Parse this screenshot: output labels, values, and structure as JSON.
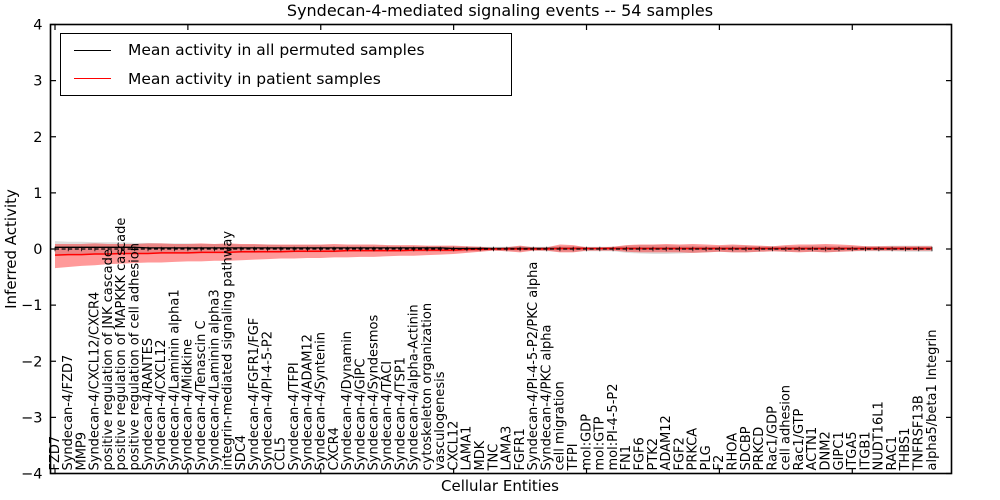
{
  "title": "Syndecan-4-mediated signaling events -- 54 samples",
  "legend": {
    "entries": [
      {
        "label": "Mean activity in all permuted samples",
        "color": "#000000"
      },
      {
        "label": "Mean activity in patient samples",
        "color": "#ff0000"
      }
    ]
  },
  "colors": {
    "background": "#ffffff",
    "frame": "#000000",
    "permuted_line": "#000000",
    "patient_line": "#ff0000",
    "permuted_band": "rgba(0,0,0,0.13)",
    "patient_band": "rgba(255,0,0,0.40)",
    "zero_line": "#000000"
  },
  "chart_data": {
    "type": "line",
    "title": "Syndecan-4-mediated signaling events -- 54 samples",
    "xlabel": "Cellular Entities",
    "ylabel": "Inferred Activity",
    "ylim": [
      -4,
      4
    ],
    "yticks": [
      -4,
      -3,
      -2,
      -1,
      0,
      1,
      2,
      3,
      4
    ],
    "xticks": [
      0,
      10,
      20,
      30,
      40,
      50,
      60
    ],
    "grid": false,
    "legend_position": "upper left",
    "zero_line": {
      "style": "dashed",
      "color": "#000000"
    },
    "categories": [
      "FZD7",
      "Syndecan-4/FZD7",
      "MMP9",
      "Syndecan-4/CXCL12/CXCR4",
      "positive regulation of JNK cascade",
      "positive regulation of MAPKKK cascade",
      "positive regulation of cell adhesion",
      "Syndecan-4/RANTES",
      "Syndecan-4/CXCL12",
      "Syndecan-4/Laminin alpha1",
      "Syndecan-4/Midkine",
      "Syndecan-4/Tenascin C",
      "Syndecan-4/Laminin alpha3",
      "integrin-mediated signaling pathway",
      "SDC4",
      "Syndecan-4/FGFR1/FGF",
      "Syndecan-4/PI-4-5-P2",
      "CCL5",
      "Syndecan-4/TFPI",
      "Syndecan-4/ADAM12",
      "Syndecan-4/Syntenin",
      "CXCR4",
      "Syndecan-4/Dynamin",
      "Syndecan-4/GIPC",
      "Syndecan-4/Syndesmos",
      "Syndecan-4/TACI",
      "Syndecan-4/TSP1",
      "Syndecan-4/alpha-Actinin",
      "cytoskeleton organization",
      "vasculogenesis",
      "CXCL12",
      "LAMA1",
      "MDK",
      "TNC",
      "LAMA3",
      "FGFR1",
      "Syndecan-4/PI-4-5-P2/PKC alpha",
      "Syndecan-4/PKC alpha",
      "cell migration",
      "TFPI",
      "mol:GDP",
      "mol:GTP",
      "mol:PI-4-5-P2",
      "FN1",
      "FGF6",
      "PTK2",
      "ADAM12",
      "FGF2",
      "PRKCA",
      "PLG",
      "F2",
      "RHOA",
      "SDCBP",
      "PRKCD",
      "Rac1/GDP",
      "cell adhesion",
      "Rac1/GTP",
      "ACTN1",
      "DNM2",
      "GIPC1",
      "ITGA5",
      "ITGB1",
      "NUDT16L1",
      "RAC1",
      "THBS1",
      "TNFRSF13B",
      "alpha5/beta1 Integrin"
    ],
    "series": [
      {
        "name": "Mean activity in all permuted samples",
        "color": "#000000",
        "band_color": "rgba(0,0,0,0.13)",
        "values": [
          0.03,
          0.03,
          0.03,
          0.03,
          0.03,
          0.03,
          0.03,
          0.02,
          0.02,
          0.02,
          0.02,
          0.02,
          0.02,
          0.02,
          0.02,
          0.02,
          0.02,
          0.02,
          0.02,
          0.02,
          0.02,
          0.02,
          0.02,
          0.02,
          0.02,
          0.02,
          0.02,
          0.02,
          0.02,
          0.02,
          0.01,
          0.01,
          0.01,
          0.01,
          0.01,
          0.01,
          0.01,
          0.01,
          0.01,
          0.01,
          0.01,
          0.01,
          0.01,
          0.01,
          0.01,
          0.01,
          0.01,
          0.01,
          0.01,
          0.01,
          0.01,
          0.01,
          0.01,
          0.01,
          0.01,
          0.01,
          0.01,
          0.01,
          0.01,
          0.01,
          0.01,
          0.01,
          0.01,
          0.01,
          0.01,
          0.01,
          0.01
        ],
        "band_upper": [
          0.14,
          0.13,
          0.13,
          0.12,
          0.12,
          0.12,
          0.11,
          0.11,
          0.1,
          0.1,
          0.1,
          0.09,
          0.09,
          0.09,
          0.08,
          0.08,
          0.08,
          0.07,
          0.07,
          0.07,
          0.07,
          0.06,
          0.06,
          0.06,
          0.06,
          0.06,
          0.05,
          0.05,
          0.05,
          0.05,
          0.05,
          0.04,
          0.04,
          0.04,
          0.04,
          0.05,
          0.04,
          0.04,
          0.05,
          0.05,
          0.04,
          0.04,
          0.04,
          0.06,
          0.07,
          0.07,
          0.07,
          0.06,
          0.06,
          0.05,
          0.05,
          0.06,
          0.06,
          0.05,
          0.05,
          0.05,
          0.05,
          0.06,
          0.06,
          0.05,
          0.05,
          0.05,
          0.05,
          0.06,
          0.06,
          0.06,
          0.06
        ],
        "band_lower": [
          -0.1,
          -0.1,
          -0.1,
          -0.09,
          -0.09,
          -0.09,
          -0.09,
          -0.08,
          -0.08,
          -0.08,
          -0.08,
          -0.07,
          -0.07,
          -0.07,
          -0.07,
          -0.07,
          -0.06,
          -0.06,
          -0.06,
          -0.06,
          -0.06,
          -0.06,
          -0.05,
          -0.05,
          -0.05,
          -0.05,
          -0.05,
          -0.05,
          -0.05,
          -0.05,
          -0.05,
          -0.04,
          -0.04,
          -0.03,
          -0.04,
          -0.04,
          -0.03,
          -0.04,
          -0.05,
          -0.05,
          -0.04,
          -0.04,
          -0.04,
          -0.07,
          -0.08,
          -0.09,
          -0.09,
          -0.08,
          -0.07,
          -0.06,
          -0.05,
          -0.06,
          -0.06,
          -0.05,
          -0.04,
          -0.05,
          -0.05,
          -0.05,
          -0.06,
          -0.05,
          -0.04,
          -0.04,
          -0.04,
          -0.04,
          -0.05,
          -0.05,
          -0.05
        ]
      },
      {
        "name": "Mean activity in patient samples",
        "color": "#ff0000",
        "band_color": "rgba(255,0,0,0.40)",
        "values": [
          -0.11,
          -0.1,
          -0.1,
          -0.09,
          -0.09,
          -0.08,
          -0.08,
          -0.08,
          -0.07,
          -0.07,
          -0.07,
          -0.06,
          -0.06,
          -0.06,
          -0.05,
          -0.05,
          -0.05,
          -0.05,
          -0.04,
          -0.04,
          -0.04,
          -0.04,
          -0.03,
          -0.03,
          -0.03,
          -0.03,
          -0.03,
          -0.02,
          -0.02,
          -0.02,
          -0.02,
          -0.01,
          -0.01,
          0.0,
          0.0,
          0.0,
          0.0,
          0.0,
          0.01,
          0.01,
          0.01,
          0.01,
          0.01,
          0.01,
          0.01,
          0.01,
          0.01,
          0.01,
          0.01,
          0.01,
          0.01,
          0.01,
          0.01,
          0.01,
          0.01,
          0.01,
          0.01,
          0.01,
          0.01,
          0.01,
          0.01,
          0.01,
          0.01,
          0.01,
          0.01,
          0.01,
          0.01
        ],
        "band_upper": [
          0.09,
          0.09,
          0.09,
          0.1,
          0.09,
          0.09,
          0.09,
          0.1,
          0.1,
          0.09,
          0.09,
          0.1,
          0.09,
          0.1,
          0.09,
          0.09,
          0.08,
          0.08,
          0.08,
          0.08,
          0.08,
          0.09,
          0.08,
          0.08,
          0.08,
          0.07,
          0.07,
          0.07,
          0.06,
          0.06,
          0.06,
          0.05,
          0.04,
          0.02,
          0.03,
          0.06,
          0.03,
          0.03,
          0.08,
          0.07,
          0.03,
          0.03,
          0.04,
          0.07,
          0.08,
          0.08,
          0.09,
          0.08,
          0.09,
          0.08,
          0.07,
          0.08,
          0.07,
          0.06,
          0.05,
          0.07,
          0.08,
          0.08,
          0.09,
          0.08,
          0.07,
          0.05,
          0.05,
          0.05,
          0.05,
          0.05,
          0.05
        ],
        "band_lower": [
          -0.34,
          -0.32,
          -0.3,
          -0.29,
          -0.27,
          -0.26,
          -0.25,
          -0.24,
          -0.24,
          -0.23,
          -0.22,
          -0.22,
          -0.21,
          -0.21,
          -0.2,
          -0.19,
          -0.18,
          -0.17,
          -0.17,
          -0.16,
          -0.16,
          -0.15,
          -0.15,
          -0.14,
          -0.14,
          -0.13,
          -0.12,
          -0.12,
          -0.11,
          -0.1,
          -0.09,
          -0.07,
          -0.05,
          -0.03,
          -0.04,
          -0.06,
          -0.03,
          -0.03,
          -0.06,
          -0.06,
          -0.03,
          -0.03,
          -0.03,
          -0.05,
          -0.06,
          -0.06,
          -0.06,
          -0.06,
          -0.07,
          -0.06,
          -0.05,
          -0.06,
          -0.06,
          -0.05,
          -0.04,
          -0.05,
          -0.06,
          -0.05,
          -0.06,
          -0.05,
          -0.04,
          -0.03,
          -0.03,
          -0.03,
          -0.03,
          -0.03,
          -0.03
        ]
      }
    ]
  }
}
